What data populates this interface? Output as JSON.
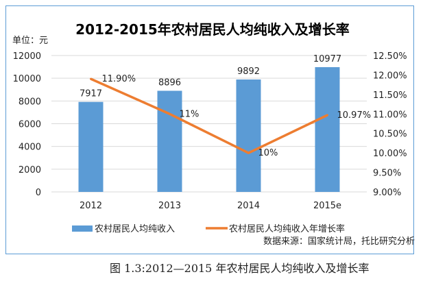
{
  "chart_data": {
    "type": "bar+line",
    "title": "2012-2015年农村居民人均纯收入及增长率",
    "unit_label": "单位：元",
    "categories": [
      "2012",
      "2013",
      "2014",
      "2015e"
    ],
    "series": [
      {
        "name": "农村居民人均纯收入",
        "type": "bar",
        "axis": "left",
        "color": "#5b9bd5",
        "values": [
          7917,
          8896,
          9892,
          10977
        ],
        "labels": [
          "7917",
          "8896",
          "9892",
          "10977"
        ]
      },
      {
        "name": "农村居民人均纯收入年增长率",
        "type": "line",
        "axis": "right",
        "color": "#ed7d31",
        "values": [
          11.9,
          11.0,
          10.0,
          10.97
        ],
        "labels": [
          "11.90%",
          "11%",
          "10%",
          "10.97%"
        ]
      }
    ],
    "left_axis": {
      "ylim": [
        0,
        12000
      ],
      "ticks": [
        "0",
        "2000",
        "4000",
        "6000",
        "8000",
        "10000",
        "12000"
      ]
    },
    "right_axis": {
      "ylim": [
        9.0,
        12.5
      ],
      "ticks": [
        "9.00%",
        "9.50%",
        "10.00%",
        "10.50%",
        "11.00%",
        "11.50%",
        "12.00%",
        "12.50%"
      ]
    },
    "grid": true,
    "legend": "bottom",
    "source": "数据来源：国家统计局，托比研究分析"
  },
  "caption": "图 1.3:2012—2015 年农村居民人均纯收入及增长率"
}
